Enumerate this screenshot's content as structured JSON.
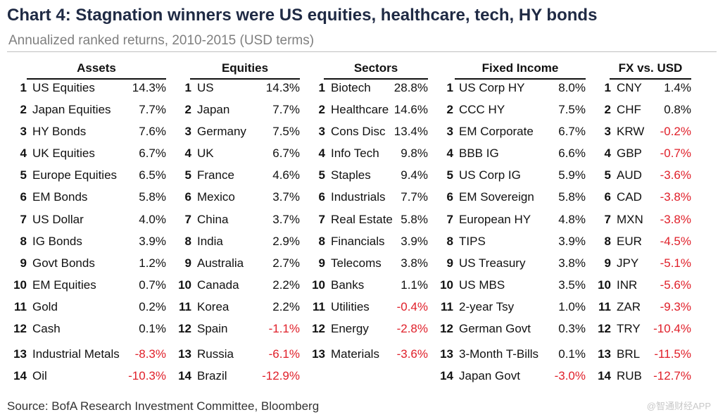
{
  "title": "Chart 4: Stagnation winners were US equities, healthcare, tech, HY bonds",
  "subtitle": "Annualized ranked returns, 2010-2015 (USD terms)",
  "source": "Source: BofA Research Investment Committee, Bloomberg",
  "watermark": "@智通财经APP",
  "colors": {
    "negative": "#e0202a",
    "title": "#1f2a44"
  },
  "chart_data": {
    "type": "table",
    "title": "Chart 4: Stagnation winners were US equities, healthcare, tech, HY bonds",
    "subtitle": "Annualized ranked returns, 2010-2015 (USD terms)",
    "groups": [
      {
        "header": "Assets",
        "rows": [
          {
            "rank": "1",
            "name": "US Equities",
            "value": "14.3%"
          },
          {
            "rank": "2",
            "name": "Japan Equities",
            "value": "7.7%"
          },
          {
            "rank": "3",
            "name": "HY Bonds",
            "value": "7.6%"
          },
          {
            "rank": "4",
            "name": "UK Equities",
            "value": "6.7%"
          },
          {
            "rank": "5",
            "name": "Europe Equities",
            "value": "6.5%"
          },
          {
            "rank": "6",
            "name": "EM Bonds",
            "value": "5.8%"
          },
          {
            "rank": "7",
            "name": "US Dollar",
            "value": "4.0%"
          },
          {
            "rank": "8",
            "name": "IG Bonds",
            "value": "3.9%"
          },
          {
            "rank": "9",
            "name": "Govt Bonds",
            "value": "1.2%"
          },
          {
            "rank": "10",
            "name": "EM Equities",
            "value": "0.7%"
          },
          {
            "rank": "11",
            "name": "Gold",
            "value": "0.2%"
          },
          {
            "rank": "12",
            "name": "Cash",
            "value": "0.1%"
          },
          {
            "rank": "13",
            "name": "Industrial Metals",
            "value": "-8.3%"
          },
          {
            "rank": "14",
            "name": "Oil",
            "value": "-10.3%"
          }
        ]
      },
      {
        "header": "Equities",
        "rows": [
          {
            "rank": "1",
            "name": "US",
            "value": "14.3%"
          },
          {
            "rank": "2",
            "name": "Japan",
            "value": "7.7%"
          },
          {
            "rank": "3",
            "name": "Germany",
            "value": "7.5%"
          },
          {
            "rank": "4",
            "name": "UK",
            "value": "6.7%"
          },
          {
            "rank": "5",
            "name": "France",
            "value": "4.6%"
          },
          {
            "rank": "6",
            "name": "Mexico",
            "value": "3.7%"
          },
          {
            "rank": "7",
            "name": "China",
            "value": "3.7%"
          },
          {
            "rank": "8",
            "name": "India",
            "value": "2.9%"
          },
          {
            "rank": "9",
            "name": "Australia",
            "value": "2.7%"
          },
          {
            "rank": "10",
            "name": "Canada",
            "value": "2.2%"
          },
          {
            "rank": "11",
            "name": "Korea",
            "value": "2.2%"
          },
          {
            "rank": "12",
            "name": "Spain",
            "value": "-1.1%"
          },
          {
            "rank": "13",
            "name": "Russia",
            "value": "-6.1%"
          },
          {
            "rank": "14",
            "name": "Brazil",
            "value": "-12.9%"
          }
        ]
      },
      {
        "header": "Sectors",
        "rows": [
          {
            "rank": "1",
            "name": "Biotech",
            "value": "28.8%"
          },
          {
            "rank": "2",
            "name": "Healthcare",
            "value": "14.6%"
          },
          {
            "rank": "3",
            "name": "Cons Disc",
            "value": "13.4%"
          },
          {
            "rank": "4",
            "name": "Info Tech",
            "value": "9.8%"
          },
          {
            "rank": "5",
            "name": "Staples",
            "value": "9.4%"
          },
          {
            "rank": "6",
            "name": "Industrials",
            "value": "7.7%"
          },
          {
            "rank": "7",
            "name": "Real Estate",
            "value": "5.8%"
          },
          {
            "rank": "8",
            "name": "Financials",
            "value": "3.9%"
          },
          {
            "rank": "9",
            "name": "Telecoms",
            "value": "3.8%"
          },
          {
            "rank": "10",
            "name": "Banks",
            "value": "1.1%"
          },
          {
            "rank": "11",
            "name": "Utilities",
            "value": "-0.4%"
          },
          {
            "rank": "12",
            "name": "Energy",
            "value": "-2.8%"
          },
          {
            "rank": "13",
            "name": "Materials",
            "value": "-3.6%"
          }
        ]
      },
      {
        "header": "Fixed Income",
        "rows": [
          {
            "rank": "1",
            "name": "US Corp HY",
            "value": "8.0%"
          },
          {
            "rank": "2",
            "name": "CCC HY",
            "value": "7.5%"
          },
          {
            "rank": "3",
            "name": "EM Corporate",
            "value": "6.7%"
          },
          {
            "rank": "4",
            "name": "BBB IG",
            "value": "6.6%"
          },
          {
            "rank": "5",
            "name": "US Corp IG",
            "value": "5.9%"
          },
          {
            "rank": "6",
            "name": "EM Sovereign",
            "value": "5.8%"
          },
          {
            "rank": "7",
            "name": "European HY",
            "value": "4.8%"
          },
          {
            "rank": "8",
            "name": "TIPS",
            "value": "3.9%"
          },
          {
            "rank": "9",
            "name": "US Treasury",
            "value": "3.8%"
          },
          {
            "rank": "10",
            "name": "US MBS",
            "value": "3.5%"
          },
          {
            "rank": "11",
            "name": "2-year Tsy",
            "value": "1.0%"
          },
          {
            "rank": "12",
            "name": "German Govt",
            "value": "0.3%"
          },
          {
            "rank": "13",
            "name": "3-Month T-Bills",
            "value": "0.1%"
          },
          {
            "rank": "14",
            "name": "Japan Govt",
            "value": "-3.0%"
          }
        ]
      },
      {
        "header": "FX vs. USD",
        "rows": [
          {
            "rank": "1",
            "name": "CNY",
            "value": "1.4%"
          },
          {
            "rank": "2",
            "name": "CHF",
            "value": "0.8%"
          },
          {
            "rank": "3",
            "name": "KRW",
            "value": "-0.2%"
          },
          {
            "rank": "4",
            "name": "GBP",
            "value": "-0.7%"
          },
          {
            "rank": "5",
            "name": "AUD",
            "value": "-3.6%"
          },
          {
            "rank": "6",
            "name": "CAD",
            "value": "-3.8%"
          },
          {
            "rank": "7",
            "name": "MXN",
            "value": "-3.8%"
          },
          {
            "rank": "8",
            "name": "EUR",
            "value": "-4.5%"
          },
          {
            "rank": "9",
            "name": "JPY",
            "value": "-5.1%"
          },
          {
            "rank": "10",
            "name": "INR",
            "value": "-5.6%"
          },
          {
            "rank": "11",
            "name": "ZAR",
            "value": "-9.3%"
          },
          {
            "rank": "12",
            "name": "TRY",
            "value": "-10.4%"
          },
          {
            "rank": "13",
            "name": "BRL",
            "value": "-11.5%"
          },
          {
            "rank": "14",
            "name": "RUB",
            "value": "-12.7%"
          }
        ]
      }
    ]
  }
}
